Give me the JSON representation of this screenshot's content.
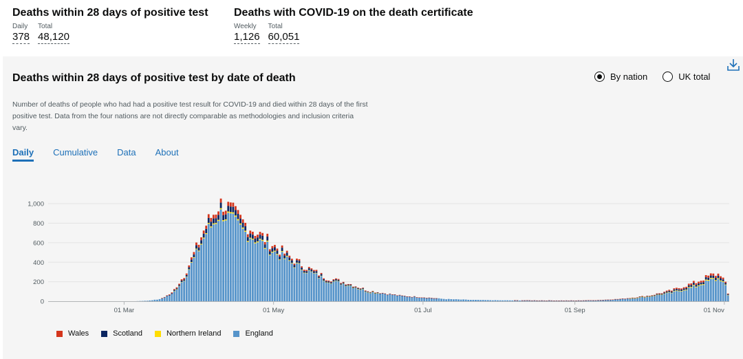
{
  "headlines": [
    {
      "title": "Deaths within 28 days of positive test",
      "metrics": [
        {
          "label": "Daily",
          "value": "378"
        },
        {
          "label": "Total",
          "value": "48,120"
        }
      ]
    },
    {
      "title": "Deaths with COVID-19 on the death certificate",
      "metrics": [
        {
          "label": "Weekly",
          "value": "1,126"
        },
        {
          "label": "Total",
          "value": "60,051"
        }
      ]
    }
  ],
  "card": {
    "title": "Deaths within 28 days of positive test by date of death",
    "description": "Number of deaths of people who had had a positive test result for COVID-19 and died within 28 days of the first positive test. Data from the four nations are not directly comparable as methodologies and inclusion criteria vary.",
    "radio_options": [
      {
        "label": "By nation",
        "selected": true
      },
      {
        "label": "UK total",
        "selected": false
      }
    ],
    "tabs": [
      {
        "label": "Daily",
        "active": true
      },
      {
        "label": "Cumulative",
        "active": false
      },
      {
        "label": "Data",
        "active": false
      },
      {
        "label": "About",
        "active": false
      }
    ],
    "download_icon": "download-icon"
  },
  "chart_data": {
    "type": "bar",
    "stacked": true,
    "x_start": "2020-01-30",
    "x_end": "2020-11-02",
    "ylim": [
      0,
      1100
    ],
    "yticks": [
      0,
      200,
      400,
      600,
      800,
      1000
    ],
    "ytick_labels": [
      "0",
      "200",
      "400",
      "600",
      "800",
      "1,000"
    ],
    "xticks": [
      "2020-03-01",
      "2020-05-01",
      "2020-07-01",
      "2020-09-01",
      "2020-11-01"
    ],
    "xtick_labels": [
      "01 Mar",
      "01 May",
      "01 Jul",
      "01 Sep",
      "01 Nov"
    ],
    "grid": true,
    "legend_position": "bottom-left",
    "series": [
      {
        "name": "England",
        "color": "#5694ca"
      },
      {
        "name": "Northern Ireland",
        "color": "#ffdd00"
      },
      {
        "name": "Scotland",
        "color": "#0b2560"
      },
      {
        "name": "Wales",
        "color": "#d4351c"
      }
    ],
    "legend_order": [
      "Wales",
      "Scotland",
      "Northern Ireland",
      "England"
    ],
    "england_keypoints": [
      [
        "2020-01-30",
        0
      ],
      [
        "2020-03-05",
        0
      ],
      [
        "2020-03-10",
        5
      ],
      [
        "2020-03-15",
        20
      ],
      [
        "2020-03-20",
        70
      ],
      [
        "2020-03-25",
        230
      ],
      [
        "2020-03-30",
        480
      ],
      [
        "2020-04-03",
        700
      ],
      [
        "2020-04-06",
        800
      ],
      [
        "2020-04-08",
        880
      ],
      [
        "2020-04-10",
        900
      ],
      [
        "2020-04-13",
        830
      ],
      [
        "2020-04-18",
        720
      ],
      [
        "2020-04-24",
        620
      ],
      [
        "2020-05-01",
        500
      ],
      [
        "2020-05-08",
        390
      ],
      [
        "2020-05-15",
        300
      ],
      [
        "2020-05-22",
        215
      ],
      [
        "2020-05-31",
        170
      ],
      [
        "2020-06-08",
        100
      ],
      [
        "2020-06-15",
        75
      ],
      [
        "2020-06-22",
        52
      ],
      [
        "2020-07-01",
        38
      ],
      [
        "2020-07-10",
        22
      ],
      [
        "2020-07-20",
        14
      ],
      [
        "2020-08-01",
        9
      ],
      [
        "2020-08-20",
        7
      ],
      [
        "2020-09-01",
        6
      ],
      [
        "2020-09-10",
        10
      ],
      [
        "2020-09-20",
        22
      ],
      [
        "2020-10-01",
        48
      ],
      [
        "2020-10-10",
        85
      ],
      [
        "2020-10-20",
        150
      ],
      [
        "2020-10-26",
        215
      ],
      [
        "2020-10-30",
        225
      ],
      [
        "2020-11-01",
        150
      ],
      [
        "2020-11-02",
        60
      ]
    ],
    "other_keypoints": {
      "Scotland": [
        [
          "2020-01-30",
          0
        ],
        [
          "2020-03-15",
          0
        ],
        [
          "2020-03-25",
          15
        ],
        [
          "2020-04-05",
          50
        ],
        [
          "2020-04-10",
          55
        ],
        [
          "2020-04-20",
          45
        ],
        [
          "2020-05-01",
          35
        ],
        [
          "2020-05-15",
          18
        ],
        [
          "2020-06-01",
          8
        ],
        [
          "2020-06-20",
          2
        ],
        [
          "2020-07-10",
          0
        ],
        [
          "2020-09-15",
          1
        ],
        [
          "2020-10-01",
          5
        ],
        [
          "2020-10-20",
          20
        ],
        [
          "2020-10-30",
          25
        ],
        [
          "2020-11-02",
          8
        ]
      ],
      "Wales": [
        [
          "2020-01-30",
          0
        ],
        [
          "2020-03-15",
          0
        ],
        [
          "2020-03-25",
          15
        ],
        [
          "2020-04-05",
          38
        ],
        [
          "2020-04-12",
          40
        ],
        [
          "2020-04-25",
          28
        ],
        [
          "2020-05-10",
          15
        ],
        [
          "2020-06-01",
          6
        ],
        [
          "2020-06-20",
          2
        ],
        [
          "2020-07-10",
          0
        ],
        [
          "2020-09-15",
          1
        ],
        [
          "2020-10-01",
          3
        ],
        [
          "2020-10-20",
          18
        ],
        [
          "2020-10-30",
          22
        ],
        [
          "2020-11-02",
          6
        ]
      ],
      "Northern Ireland": [
        [
          "2020-01-30",
          0
        ],
        [
          "2020-03-20",
          0
        ],
        [
          "2020-04-01",
          8
        ],
        [
          "2020-04-10",
          12
        ],
        [
          "2020-04-25",
          10
        ],
        [
          "2020-05-10",
          5
        ],
        [
          "2020-06-01",
          1
        ],
        [
          "2020-06-20",
          0
        ],
        [
          "2020-09-20",
          0
        ],
        [
          "2020-10-05",
          3
        ],
        [
          "2020-10-20",
          8
        ],
        [
          "2020-10-30",
          9
        ],
        [
          "2020-11-02",
          3
        ]
      ]
    }
  }
}
